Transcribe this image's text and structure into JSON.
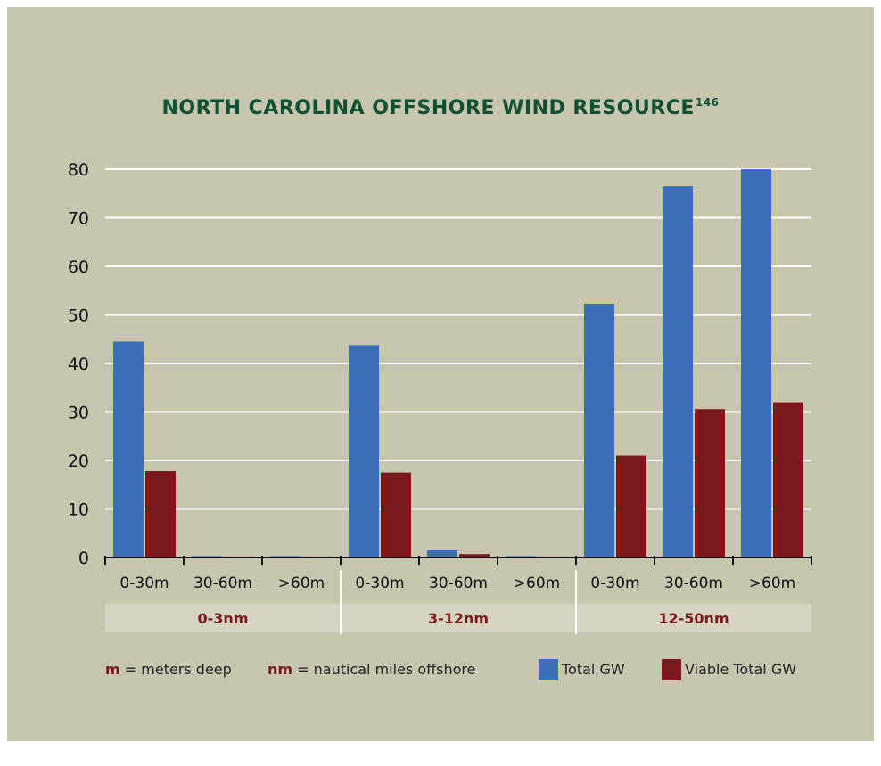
{
  "title": "NORTH CAROLINA OFFSHORE WIND RESOURCE",
  "title_superscript": "146",
  "chart_data": {
    "type": "bar",
    "title": "NORTH CAROLINA OFFSHORE WIND RESOURCE",
    "ylim": [
      0,
      80
    ],
    "yticks": [
      0,
      10,
      20,
      30,
      40,
      50,
      60,
      70,
      80
    ],
    "grid": true,
    "categories": [
      "0-30m",
      "30-60m",
      ">60m",
      "0-30m",
      "30-60m",
      ">60m",
      "0-30m",
      "30-60m",
      ">60m"
    ],
    "groups": [
      {
        "label": "0-3nm",
        "span": [
          0,
          2
        ]
      },
      {
        "label": "3-12nm",
        "span": [
          3,
          5
        ]
      },
      {
        "label": "12-50nm",
        "span": [
          6,
          8
        ]
      }
    ],
    "series": [
      {
        "name": "Total GW",
        "color": "#3d6fb8",
        "values": [
          44.5,
          0.3,
          0.3,
          43.8,
          1.5,
          0.3,
          52.3,
          76.5,
          80
        ]
      },
      {
        "name": "Viable Total GW",
        "color": "#7a1a1f",
        "values": [
          17.8,
          0.2,
          0.2,
          17.5,
          0.7,
          0.2,
          21,
          30.6,
          32
        ]
      }
    ],
    "legend_position": "bottom"
  },
  "legend": {
    "m_abbr": "m",
    "m_text": "= meters deep",
    "nm_abbr": "nm",
    "nm_text": "= nautical miles offshore",
    "total_label": "Total GW",
    "viable_label": "Viable Total GW"
  }
}
